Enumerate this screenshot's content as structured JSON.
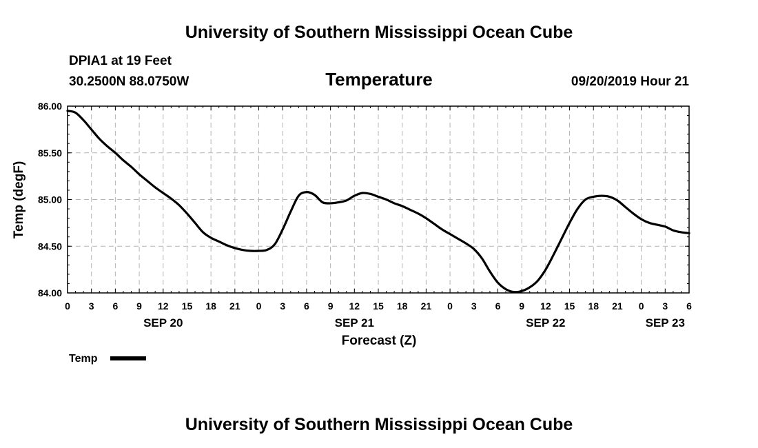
{
  "page": {
    "header": "University of Southern Mississippi Ocean Cube",
    "footer": "University of Southern Mississippi Ocean Cube",
    "station": "DPIA1 at 19 Feet",
    "coords": "30.2500N 88.0750W",
    "timestamp": "09/20/2019 Hour 21"
  },
  "colors": {
    "line": "#000000",
    "grid": "#b4b4b4",
    "frame": "#000000",
    "background": "#ffffff"
  },
  "chart_data": {
    "type": "line",
    "title": "Temperature",
    "xlabel": "Forecast (Z)",
    "ylabel": "Temp (degF)",
    "ylim": [
      84.0,
      86.0
    ],
    "xlim_hours": [
      0,
      78
    ],
    "grid": true,
    "legend_position": "bottom-left",
    "ytick_labels": [
      "84.00",
      "84.50",
      "85.00",
      "85.50",
      "86.00"
    ],
    "yticks": [
      84.0,
      84.5,
      85.0,
      85.5,
      86.0
    ],
    "xtick_labels": [
      "0",
      "3",
      "6",
      "9",
      "12",
      "15",
      "18",
      "21",
      "0",
      "3",
      "6",
      "9",
      "12",
      "15",
      "18",
      "21",
      "0",
      "3",
      "6",
      "9",
      "12",
      "15",
      "18",
      "21",
      "0",
      "3",
      "6"
    ],
    "date_labels": [
      {
        "label": "SEP 20",
        "hour": 12
      },
      {
        "label": "SEP 21",
        "hour": 36
      },
      {
        "label": "SEP 22",
        "hour": 60
      },
      {
        "label": "SEP 23",
        "hour": 75
      }
    ],
    "series": [
      {
        "name": "Temp",
        "x": [
          0,
          1,
          2,
          3,
          4,
          5,
          6,
          7,
          8,
          9,
          10,
          11,
          12,
          13,
          14,
          15,
          16,
          17,
          18,
          19,
          20,
          21,
          22,
          23,
          24,
          25,
          26,
          27,
          28,
          29,
          30,
          31,
          32,
          33,
          34,
          35,
          36,
          37,
          38,
          39,
          40,
          41,
          42,
          43,
          44,
          45,
          46,
          47,
          48,
          49,
          50,
          51,
          52,
          53,
          54,
          55,
          56,
          57,
          58,
          59,
          60,
          61,
          62,
          63,
          64,
          65,
          66,
          67,
          68,
          69,
          70,
          71,
          72,
          73,
          74,
          75,
          76,
          77,
          78
        ],
        "y": [
          85.95,
          85.93,
          85.85,
          85.75,
          85.65,
          85.57,
          85.5,
          85.42,
          85.35,
          85.27,
          85.2,
          85.13,
          85.07,
          85.01,
          84.94,
          84.85,
          84.75,
          84.65,
          84.59,
          84.55,
          84.51,
          84.48,
          84.46,
          84.45,
          84.45,
          84.46,
          84.52,
          84.68,
          84.87,
          85.04,
          85.08,
          85.05,
          84.97,
          84.96,
          84.97,
          84.99,
          85.04,
          85.07,
          85.06,
          85.03,
          85.0,
          84.96,
          84.93,
          84.89,
          84.85,
          84.8,
          84.74,
          84.68,
          84.63,
          84.58,
          84.53,
          84.47,
          84.37,
          84.23,
          84.11,
          84.04,
          84.01,
          84.02,
          84.06,
          84.13,
          84.25,
          84.41,
          84.58,
          84.75,
          84.9,
          85.0,
          85.03,
          85.04,
          85.03,
          84.99,
          84.92,
          84.85,
          84.79,
          84.75,
          84.73,
          84.71,
          84.67,
          84.65,
          84.64
        ]
      }
    ]
  }
}
